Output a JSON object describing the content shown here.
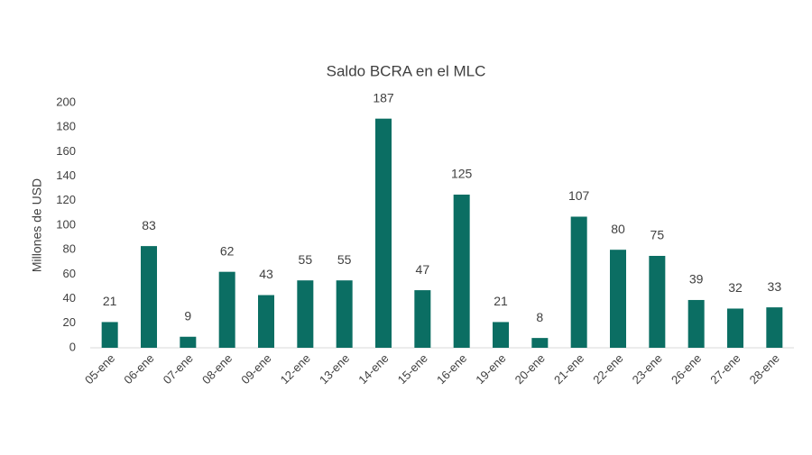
{
  "chart_data": {
    "type": "bar",
    "title": "Saldo BCRA en el MLC",
    "y_label": "Millones de USD",
    "categories": [
      "05-ene",
      "06-ene",
      "07-ene",
      "08-ene",
      "09-ene",
      "12-ene",
      "13-ene",
      "14-ene",
      "15-ene",
      "16-ene",
      "19-ene",
      "20-ene",
      "21-ene",
      "22-ene",
      "23-ene",
      "26-ene",
      "27-ene",
      "28-ene"
    ],
    "values": [
      21,
      83,
      9,
      62,
      43,
      55,
      55,
      187,
      47,
      125,
      21,
      8,
      107,
      80,
      75,
      39,
      32,
      33
    ],
    "color": "#0b6e63",
    "ylim": [
      0,
      200
    ],
    "yticks": [
      0,
      20,
      40,
      60,
      80,
      100,
      120,
      140,
      160,
      180,
      200
    ],
    "grid": false
  }
}
